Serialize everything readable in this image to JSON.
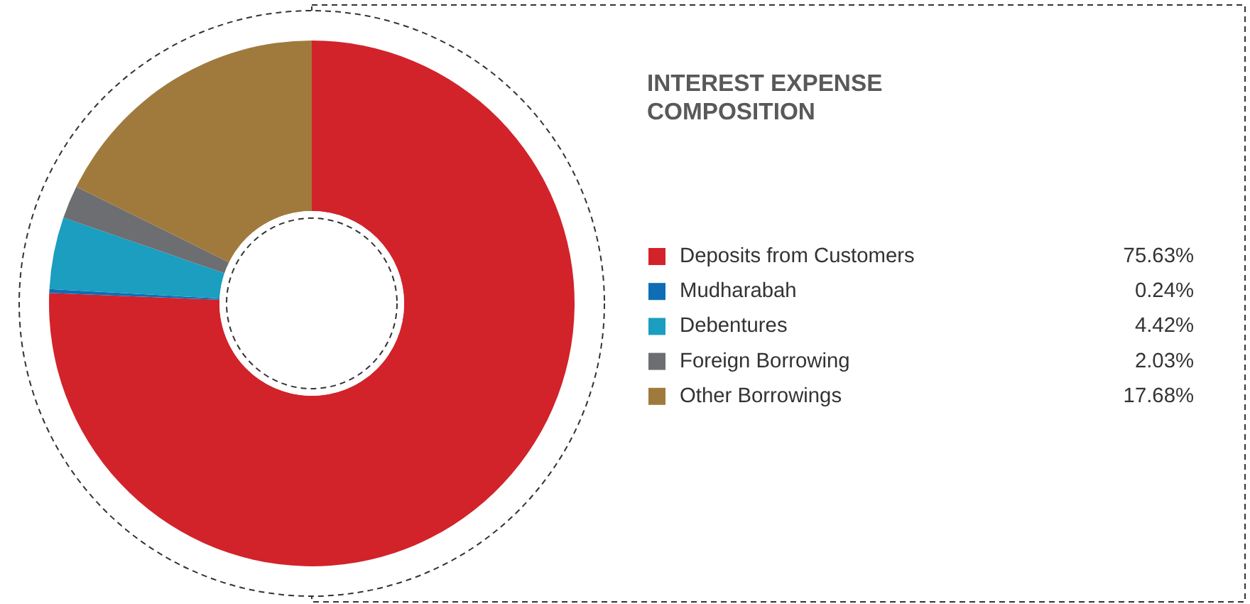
{
  "chart_data": {
    "type": "donut",
    "title": "INTEREST EXPENSE COMPOSITION",
    "categories": [
      "Deposits from Customers",
      "Mudharabah",
      "Debentures",
      "Foreign Borrowing",
      "Other Borrowings"
    ],
    "values": [
      75.63,
      0.24,
      4.42,
      2.03,
      17.68
    ],
    "value_labels": [
      "75.63%",
      "0.24%",
      "4.42%",
      "2.03%",
      "17.68%"
    ],
    "colors": [
      "#d2232a",
      "#0f6db5",
      "#1b9ebf",
      "#6d6e71",
      "#a07a3d"
    ],
    "legend": "right"
  }
}
